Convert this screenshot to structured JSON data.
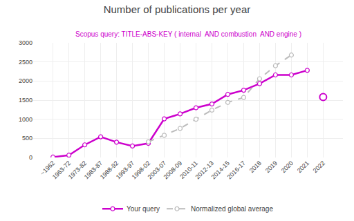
{
  "chart_data": {
    "type": "line",
    "title": "Number of publications per year",
    "subtitle": "Scopus query: TITLE-ABS-KEY ( internal  AND combustion  AND engine )",
    "categories": [
      "~1962",
      "1963-72",
      "1973-82",
      "1983-87",
      "1988-92",
      "1993-97",
      "1998-02",
      "2003-07",
      "2008-09",
      "2010-11",
      "2012-13",
      "2014-15",
      "2016-17",
      "2018",
      "2019",
      "2020",
      "2021",
      "2022"
    ],
    "series": [
      {
        "name": "Your query",
        "color": "#cc00cc",
        "line_style": "solid",
        "marker": "circle",
        "values": [
          10,
          60,
          330,
          540,
          400,
          300,
          370,
          1010,
          1140,
          1300,
          1400,
          1650,
          1760,
          1930,
          2160,
          2160,
          2280,
          null
        ],
        "open_values": [
          null,
          null,
          null,
          null,
          null,
          null,
          null,
          null,
          null,
          null,
          null,
          null,
          null,
          null,
          null,
          null,
          null,
          1580
        ]
      },
      {
        "name": "Normalized global average",
        "color": "#bbbbbb",
        "line_style": "dashed",
        "marker": "circle",
        "values": [
          null,
          null,
          null,
          null,
          null,
          null,
          410,
          580,
          760,
          1000,
          1240,
          1440,
          1570,
          2060,
          2400,
          2680,
          null,
          null
        ]
      }
    ],
    "ylim": [
      0,
      3000
    ],
    "yticks": [
      0,
      500,
      1000,
      1500,
      2000,
      2500,
      3000
    ],
    "grid": true,
    "legend": "bottom"
  }
}
